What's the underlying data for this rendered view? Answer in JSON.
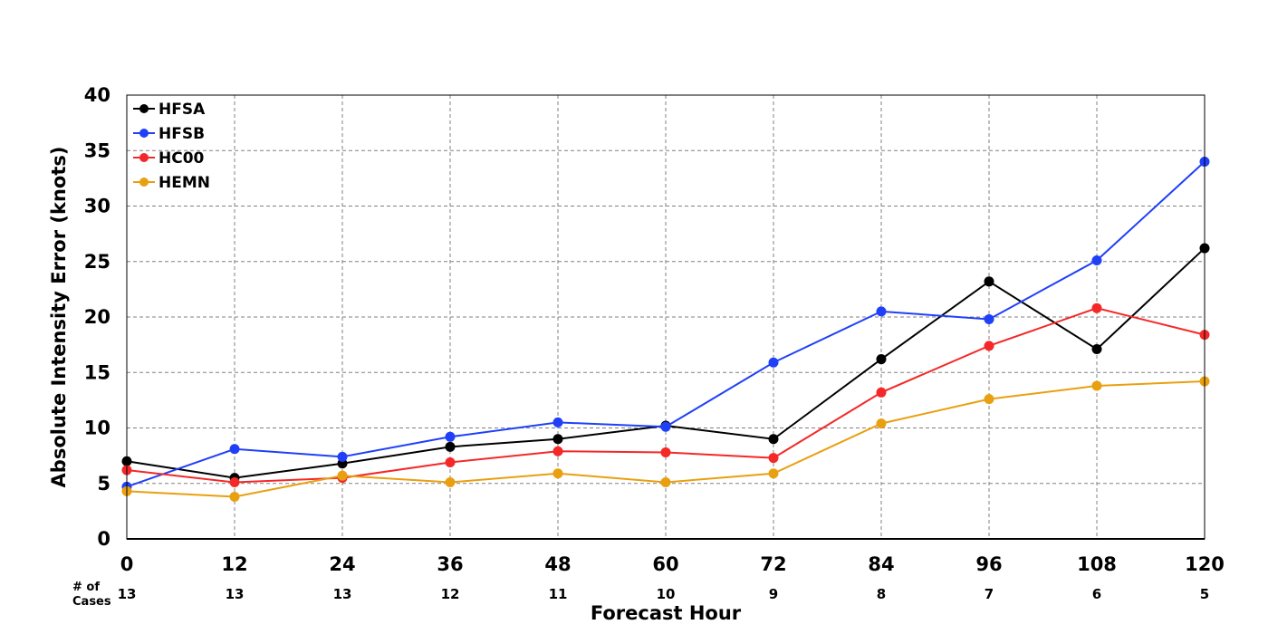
{
  "chart_data": {
    "type": "line",
    "xlabel": "Forecast Hour",
    "ylabel": "Absolute Intensity Error (knots)",
    "x": [
      0,
      12,
      24,
      36,
      48,
      60,
      72,
      84,
      96,
      108,
      120
    ],
    "xlim": [
      0,
      120
    ],
    "ylim": [
      0,
      40
    ],
    "yticks": [
      0,
      5,
      10,
      15,
      20,
      25,
      30,
      35,
      40
    ],
    "grid": true,
    "legend_position": "top-left",
    "cases_label_line1": "# of",
    "cases_label_line2": "Cases",
    "cases": [
      13,
      13,
      13,
      12,
      11,
      10,
      9,
      8,
      7,
      6,
      5
    ],
    "series": [
      {
        "name": "HFSA",
        "color": "#000000",
        "values": [
          7.0,
          5.5,
          6.8,
          8.3,
          9.0,
          10.2,
          9.0,
          16.2,
          23.2,
          17.1,
          26.2
        ]
      },
      {
        "name": "HFSB",
        "color": "#2040f8",
        "values": [
          4.7,
          8.1,
          7.4,
          9.2,
          10.5,
          10.1,
          15.9,
          20.5,
          19.8,
          25.1,
          34.0
        ]
      },
      {
        "name": "HC00",
        "color": "#f42828",
        "values": [
          6.2,
          5.1,
          5.5,
          6.9,
          7.9,
          7.8,
          7.3,
          13.2,
          17.4,
          20.8,
          18.4
        ]
      },
      {
        "name": "HEMN",
        "color": "#e8a010",
        "values": [
          4.3,
          3.8,
          5.7,
          5.1,
          5.9,
          5.1,
          5.9,
          10.4,
          12.6,
          13.8,
          14.2
        ]
      }
    ]
  }
}
